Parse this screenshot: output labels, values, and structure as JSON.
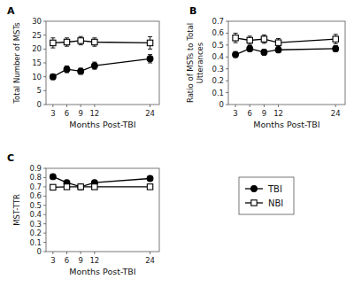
{
  "chart_data": [
    {
      "type": "line",
      "title": "A",
      "x_label": "Months Post-TBI",
      "y_label": "Total Number of MSTs",
      "x": [
        3,
        6,
        9,
        12,
        24
      ],
      "xlim": [
        1.5,
        26
      ],
      "xticks": [
        3,
        6,
        9,
        12,
        24
      ],
      "ylim": [
        0,
        30
      ],
      "yticks": [
        0,
        5,
        10,
        15,
        20,
        25,
        30
      ],
      "grid": false,
      "series": [
        {
          "name": "TBI",
          "color": "#000000",
          "marker": "circle",
          "values": [
            10.0,
            12.7,
            12.0,
            14.0,
            16.5
          ],
          "errors": [
            1.0,
            1.2,
            1.1,
            1.3,
            1.5
          ]
        },
        {
          "name": "NBI",
          "color": "#000000",
          "marker": "open-square",
          "values": [
            22.2,
            22.5,
            23.0,
            22.5,
            22.2
          ],
          "errors": [
            1.8,
            1.5,
            1.5,
            1.5,
            2.2
          ]
        }
      ]
    },
    {
      "type": "line",
      "title": "B",
      "x_label": "Months Post-TBI",
      "y_label": "Ratio of MSTs to Total\nUtterances",
      "x": [
        3,
        6,
        9,
        12,
        24
      ],
      "xlim": [
        1.5,
        26
      ],
      "xticks": [
        3,
        6,
        9,
        12,
        24
      ],
      "ylim": [
        0,
        0.7
      ],
      "yticks": [
        0,
        0.1,
        0.2,
        0.3,
        0.4,
        0.5,
        0.6,
        0.7
      ],
      "grid": false,
      "series": [
        {
          "name": "TBI",
          "color": "#000000",
          "marker": "circle",
          "values": [
            0.42,
            0.47,
            0.44,
            0.46,
            0.47
          ],
          "errors": [
            0.025,
            0.025,
            0.025,
            0.025,
            0.025
          ]
        },
        {
          "name": "NBI",
          "color": "#000000",
          "marker": "open-square",
          "values": [
            0.56,
            0.54,
            0.55,
            0.52,
            0.55
          ],
          "errors": [
            0.04,
            0.035,
            0.035,
            0.035,
            0.04
          ]
        }
      ]
    },
    {
      "type": "line",
      "title": "C",
      "x_label": "Months Post-TBI",
      "y_label": "MST-TTR",
      "x": [
        3,
        6,
        9,
        12,
        24
      ],
      "xlim": [
        1.5,
        26
      ],
      "xticks": [
        3,
        6,
        9,
        12,
        24
      ],
      "ylim": [
        0,
        0.9
      ],
      "yticks": [
        0,
        0.1,
        0.2,
        0.3,
        0.4,
        0.5,
        0.6,
        0.7,
        0.8,
        0.9
      ],
      "grid": false,
      "series": [
        {
          "name": "TBI",
          "color": "#000000",
          "marker": "circle",
          "values": [
            0.81,
            0.745,
            0.7,
            0.745,
            0.79
          ],
          "errors": [
            0.018,
            0.018,
            0.02,
            0.018,
            0.018
          ]
        },
        {
          "name": "NBI",
          "color": "#000000",
          "marker": "open-square",
          "values": [
            0.695,
            0.7,
            0.7,
            0.7,
            0.7
          ],
          "errors": [
            0.02,
            0.02,
            0.02,
            0.018,
            0.02
          ]
        }
      ]
    }
  ]
}
